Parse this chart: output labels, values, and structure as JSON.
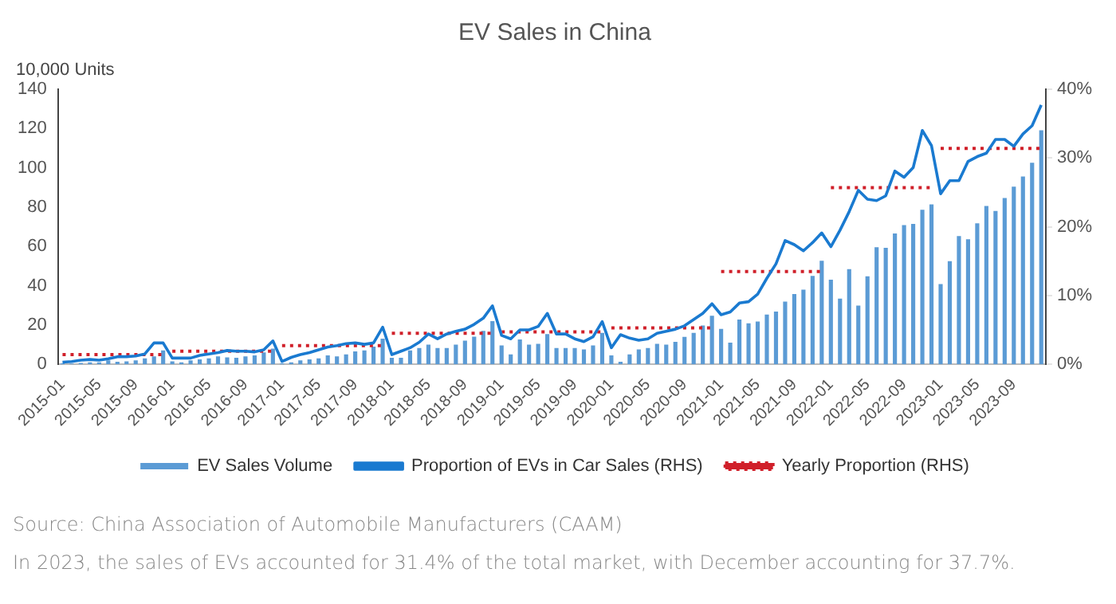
{
  "chart_data": {
    "type": "bar",
    "title": "EV Sales in China",
    "ylabel": "10,000 Units",
    "categories": [
      "2015-01",
      null,
      null,
      null,
      "2015-05",
      null,
      null,
      null,
      "2015-09",
      null,
      null,
      null,
      "2016-01",
      null,
      null,
      null,
      "2016-05",
      null,
      null,
      null,
      "2016-09",
      null,
      null,
      null,
      "2017-01",
      null,
      null,
      null,
      "2017-05",
      null,
      null,
      null,
      "2017-09",
      null,
      null,
      null,
      "2018-01",
      null,
      null,
      null,
      "2018-05",
      null,
      null,
      null,
      "2018-09",
      null,
      null,
      null,
      "2019-01",
      null,
      null,
      null,
      "2019-05",
      null,
      null,
      null,
      "2019-09",
      null,
      null,
      null,
      "2020-01",
      null,
      null,
      null,
      "2020-05",
      null,
      null,
      null,
      "2020-09",
      null,
      null,
      null,
      "2021-01",
      null,
      null,
      null,
      "2021-05",
      null,
      null,
      null,
      "2021-09",
      null,
      null,
      null,
      "2022-01",
      null,
      null,
      null,
      "2022-05",
      null,
      null,
      null,
      "2022-09",
      null,
      null,
      null,
      "2023-01",
      null,
      null,
      null,
      "2023-05",
      null,
      null,
      null,
      "2023-09",
      null,
      null,
      null
    ],
    "series": [
      {
        "name": "EV Sales Volume",
        "color": "#5b9bd5",
        "values": [
          0.5,
          0.4,
          0.7,
          1.0,
          1.0,
          2.0,
          1.3,
          1.5,
          2.0,
          3.0,
          4.0,
          7.0,
          1.5,
          1.0,
          2.0,
          2.5,
          3.0,
          4.0,
          3.5,
          3.3,
          4.0,
          4.5,
          6.0,
          8.0,
          0.5,
          1.0,
          2.0,
          2.5,
          3.0,
          4.5,
          4.0,
          5.0,
          6.5,
          7.0,
          9.0,
          13.0,
          3.3,
          3.3,
          7.0,
          8.3,
          10.0,
          8.3,
          8.3,
          10.0,
          12.0,
          14.0,
          17.0,
          22.0,
          9.6,
          5.0,
          12.6,
          10.0,
          10.4,
          15.4,
          8.3,
          8.3,
          8.3,
          7.6,
          9.6,
          16.0,
          4.5,
          1.3,
          5.0,
          7.6,
          8.3,
          10.4,
          10.0,
          11.4,
          13.9,
          16.0,
          19.7,
          24.7,
          18.0,
          11.0,
          22.8,
          20.8,
          21.8,
          25.3,
          26.8,
          31.9,
          35.7,
          38.0,
          45.0,
          52.7,
          43.1,
          33.4,
          48.4,
          29.9,
          44.8,
          59.6,
          59.3,
          66.6,
          70.8,
          71.4,
          78.6,
          81.4,
          40.8,
          52.5,
          65.3,
          63.6,
          71.7,
          80.6,
          78.0,
          84.6,
          90.4,
          95.6,
          102.6,
          119.1
        ]
      },
      {
        "name": "Proportion of EVs in Car Sales (RHS)",
        "type": "line",
        "axis": "y2",
        "color": "#1a7ad0",
        "values": [
          0.3,
          0.4,
          0.6,
          0.7,
          0.6,
          0.8,
          1.1,
          1.1,
          1.2,
          1.5,
          3.1,
          3.1,
          0.9,
          0.9,
          0.9,
          1.3,
          1.5,
          1.7,
          2.0,
          1.9,
          1.9,
          1.8,
          2.1,
          3.4,
          0.4,
          1.0,
          1.4,
          1.7,
          2.1,
          2.5,
          2.7,
          3.0,
          3.1,
          2.9,
          3.1,
          5.4,
          1.4,
          1.9,
          2.4,
          3.2,
          4.4,
          3.7,
          4.4,
          4.8,
          5.1,
          5.8,
          6.7,
          8.5,
          4.2,
          3.7,
          5.0,
          5.0,
          5.5,
          7.4,
          4.4,
          4.4,
          3.7,
          3.3,
          4.0,
          6.2,
          2.4,
          4.3,
          3.8,
          3.5,
          3.7,
          4.5,
          4.8,
          5.1,
          5.6,
          6.5,
          7.4,
          8.8,
          7.2,
          7.6,
          8.9,
          9.1,
          10.2,
          12.5,
          14.6,
          18.0,
          17.4,
          16.5,
          17.7,
          19.1,
          17.1,
          19.5,
          22.2,
          25.3,
          24.0,
          23.8,
          24.5,
          28.1,
          27.2,
          28.6,
          34.0,
          31.8,
          24.8,
          26.7,
          26.7,
          29.5,
          30.2,
          30.7,
          32.7,
          32.7,
          31.7,
          33.5,
          34.7,
          37.7
        ]
      },
      {
        "name": "Yearly Proportion (RHS)",
        "type": "line",
        "axis": "y2",
        "line_style": "dotted",
        "color": "#d0202a",
        "values": [
          1.4,
          1.4,
          1.4,
          1.4,
          1.4,
          1.4,
          1.4,
          1.4,
          1.4,
          1.4,
          1.4,
          1.4,
          1.9,
          1.9,
          1.9,
          1.9,
          1.9,
          1.9,
          1.9,
          1.9,
          1.9,
          1.9,
          1.9,
          1.9,
          2.7,
          2.7,
          2.7,
          2.7,
          2.7,
          2.7,
          2.7,
          2.7,
          2.7,
          2.7,
          2.7,
          2.7,
          4.5,
          4.5,
          4.5,
          4.5,
          4.5,
          4.5,
          4.5,
          4.5,
          4.5,
          4.5,
          4.5,
          4.5,
          4.7,
          4.7,
          4.7,
          4.7,
          4.7,
          4.7,
          4.7,
          4.7,
          4.7,
          4.7,
          4.7,
          4.7,
          5.3,
          5.3,
          5.3,
          5.3,
          5.3,
          5.3,
          5.3,
          5.3,
          5.3,
          5.3,
          5.3,
          5.3,
          13.5,
          13.5,
          13.5,
          13.5,
          13.5,
          13.5,
          13.5,
          13.5,
          13.5,
          13.5,
          13.5,
          13.5,
          25.7,
          25.7,
          25.7,
          25.7,
          25.7,
          25.7,
          25.7,
          25.7,
          25.7,
          25.7,
          25.7,
          25.7,
          31.4,
          31.4,
          31.4,
          31.4,
          31.4,
          31.4,
          31.4,
          31.4,
          31.4,
          31.4,
          31.4,
          31.4
        ]
      }
    ],
    "ylim": [
      0,
      140
    ],
    "yticks": [
      0,
      20,
      40,
      60,
      80,
      100,
      120,
      140
    ],
    "y2lim": [
      0,
      40
    ],
    "y2ticks": [
      {
        "value": 0,
        "label": "0%"
      },
      {
        "value": 10,
        "label": "10%"
      },
      {
        "value": 20,
        "label": "20%"
      },
      {
        "value": 30,
        "label": "30%"
      },
      {
        "value": 40,
        "label": "40%"
      }
    ],
    "marker": "none",
    "grid": false,
    "legend": "bottom",
    "annotations": [
      "Source: China Association of Automobile Manufacturers (CAAM)",
      "In 2023, the sales of EVs accounted for 31.4% of the total market, with December accounting for 37.7%."
    ]
  }
}
